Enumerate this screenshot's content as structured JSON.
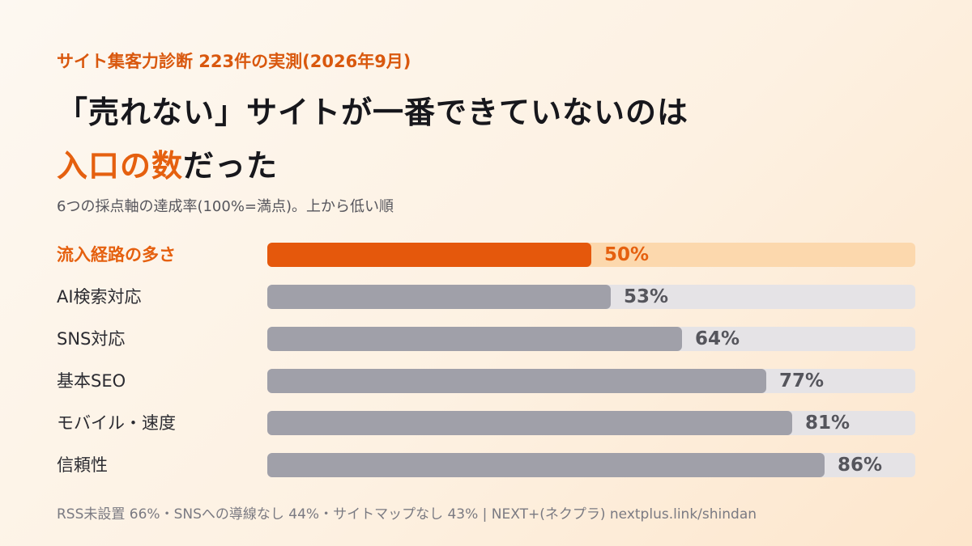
{
  "header": {
    "eyebrow": "サイト集客力診断 223件の実測(2026年9月)",
    "headline_line1": "「売れない」サイトが一番できていないのは",
    "headline_accent": "入口の数",
    "headline_tail": "だった",
    "subtitle": "6つの採点軸の達成率(100%=満点)。上から低い順"
  },
  "colors": {
    "accent": "#e5580c",
    "accent_track": "#fcd8ad",
    "bar": "#a0a0a9",
    "track": "#e5e3e6"
  },
  "chart_data": {
    "type": "bar",
    "orientation": "horizontal",
    "categories": [
      "流入経路の多さ",
      "AI検索対応",
      "SNS対応",
      "基本SEO",
      "モバイル・速度",
      "信頼性"
    ],
    "values": [
      50,
      53,
      64,
      77,
      81,
      86
    ],
    "value_labels": [
      "50%",
      "53%",
      "64%",
      "77%",
      "81%",
      "86%"
    ],
    "highlight_index": 0,
    "xlim": [
      0,
      100
    ]
  },
  "footer": {
    "text": "RSS未設置 66%・SNSへの導線なし 44%・サイトマップなし 43% | NEXT+(ネクプラ) nextplus.link/shindan"
  }
}
